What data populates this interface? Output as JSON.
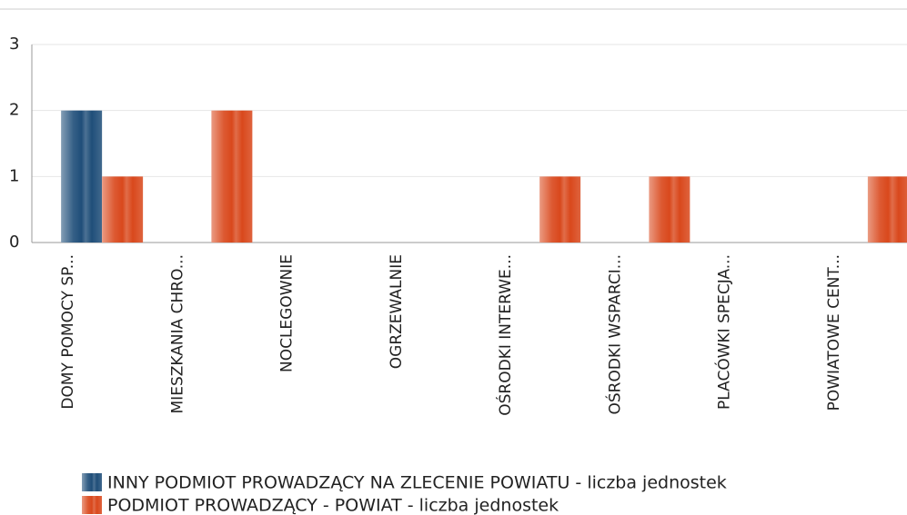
{
  "chart_data": {
    "type": "bar",
    "categories": [
      "DOMY POMOCY SP...",
      "MIESZKANIA CHRO...",
      "NOCLEGOWNIE",
      "OGRZEWALNIE",
      "OŚRODKI INTERWE...",
      "OŚRODKI WSPARCI...",
      "PLACÓWKI SPECJA...",
      "POWIATOWE CENT..."
    ],
    "series": [
      {
        "name": "INNY PODMIOT PROWADZĄCY NA ZLECENIE POWIATU - liczba jednostek",
        "color": "#1f4e79",
        "values": [
          2,
          0,
          0,
          0,
          0,
          0,
          0,
          0
        ]
      },
      {
        "name": "PODMIOT PROWADZĄCY - POWIAT - liczba jednostek",
        "color": "#d9481c",
        "values": [
          1,
          2,
          0,
          0,
          1,
          1,
          0,
          1
        ]
      }
    ],
    "ylim": [
      0,
      3
    ],
    "yticks": [
      0,
      1,
      2,
      3
    ],
    "grid": true
  }
}
